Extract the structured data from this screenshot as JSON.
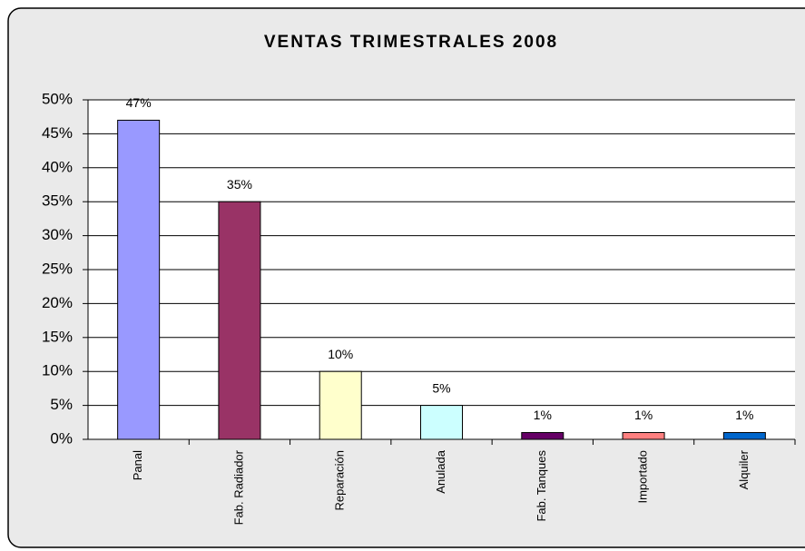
{
  "chart_data": {
    "type": "bar",
    "title": "VENTAS TRIMESTRALES 2008",
    "categories": [
      "Panal",
      "Fab. Radiador",
      "Reparación",
      "Anulada",
      "Fab. Tanques",
      "Importado",
      "Alquiler"
    ],
    "values": [
      47,
      35,
      10,
      5,
      1,
      1,
      1
    ],
    "value_labels": [
      "47%",
      "35%",
      "10%",
      "5%",
      "1%",
      "1%",
      "1%"
    ],
    "colors": [
      "#9999ff",
      "#993366",
      "#ffffcc",
      "#ccffff",
      "#660066",
      "#ff8080",
      "#0066cc"
    ],
    "ylim": [
      0,
      50
    ],
    "yticks": [
      {
        "value": 0,
        "label": "0%"
      },
      {
        "value": 5,
        "label": "5%"
      },
      {
        "value": 10,
        "label": "10%"
      },
      {
        "value": 15,
        "label": "15%"
      },
      {
        "value": 20,
        "label": "20%"
      },
      {
        "value": 25,
        "label": "25%"
      },
      {
        "value": 30,
        "label": "30%"
      },
      {
        "value": 35,
        "label": "35%"
      },
      {
        "value": 40,
        "label": "40%"
      },
      {
        "value": 45,
        "label": "45%"
      },
      {
        "value": 50,
        "label": "50%"
      }
    ],
    "grid": true
  }
}
